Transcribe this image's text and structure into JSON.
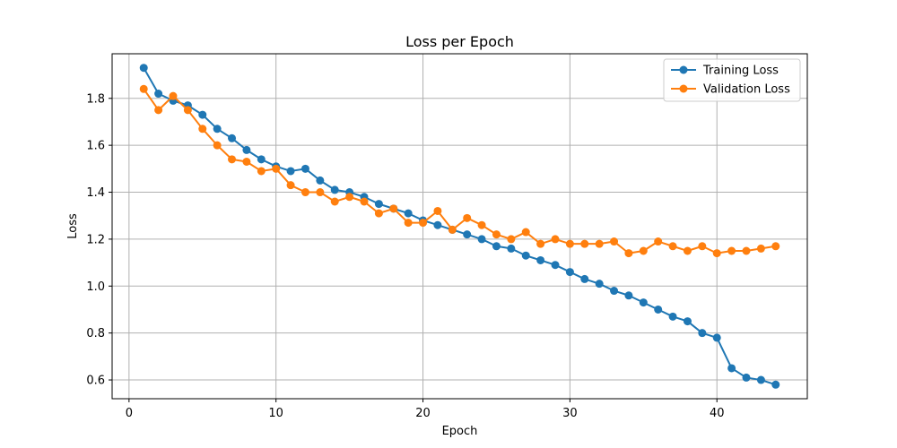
{
  "chart_data": {
    "type": "line",
    "title": "Loss per Epoch",
    "xlabel": "Epoch",
    "ylabel": "Loss",
    "xlim": [
      -1.15,
      46.15
    ],
    "ylim": [
      0.52,
      1.99
    ],
    "xticks": [
      0,
      10,
      20,
      30,
      40
    ],
    "yticks": [
      0.6,
      0.8,
      1.0,
      1.2,
      1.4,
      1.6,
      1.8
    ],
    "grid": true,
    "legend_position": "top-right",
    "x": [
      1,
      2,
      3,
      4,
      5,
      6,
      7,
      8,
      9,
      10,
      11,
      12,
      13,
      14,
      15,
      16,
      17,
      18,
      19,
      20,
      21,
      22,
      23,
      24,
      25,
      26,
      27,
      28,
      29,
      30,
      31,
      32,
      33,
      34,
      35,
      36,
      37,
      38,
      39,
      40,
      41,
      42,
      43,
      44
    ],
    "series": [
      {
        "name": "Training Loss",
        "color": "#1f77b4",
        "values": [
          1.93,
          1.82,
          1.79,
          1.77,
          1.73,
          1.67,
          1.63,
          1.58,
          1.54,
          1.51,
          1.49,
          1.5,
          1.45,
          1.41,
          1.4,
          1.38,
          1.35,
          1.33,
          1.31,
          1.28,
          1.26,
          1.24,
          1.22,
          1.2,
          1.17,
          1.16,
          1.13,
          1.11,
          1.09,
          1.06,
          1.03,
          1.01,
          0.98,
          0.96,
          0.93,
          0.9,
          0.87,
          0.85,
          0.8,
          0.78,
          0.65,
          0.61,
          0.6,
          0.58
        ]
      },
      {
        "name": "Validation Loss",
        "color": "#ff7f0e",
        "values": [
          1.84,
          1.75,
          1.81,
          1.75,
          1.67,
          1.6,
          1.54,
          1.53,
          1.49,
          1.5,
          1.43,
          1.4,
          1.4,
          1.36,
          1.38,
          1.36,
          1.31,
          1.33,
          1.27,
          1.27,
          1.32,
          1.24,
          1.29,
          1.26,
          1.22,
          1.2,
          1.23,
          1.18,
          1.2,
          1.18,
          1.18,
          1.18,
          1.19,
          1.14,
          1.15,
          1.19,
          1.17,
          1.15,
          1.17,
          1.14,
          1.15,
          1.15,
          1.16,
          1.17
        ]
      }
    ]
  }
}
